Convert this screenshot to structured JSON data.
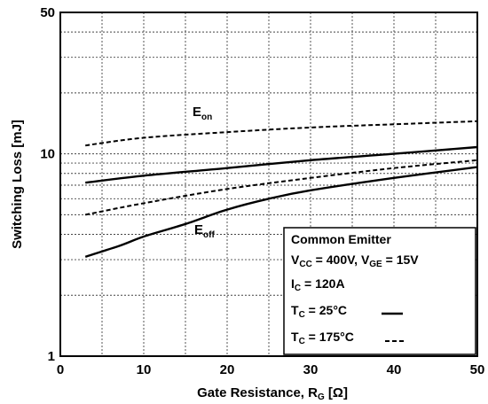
{
  "chart_data": {
    "type": "line",
    "xlabel": {
      "main": "Gate Resistance, R",
      "sub": "G",
      "unit": " [Ω]"
    },
    "ylabel": "Switching Loss [mJ]",
    "xlim": [
      0,
      50
    ],
    "ylim": [
      1,
      50
    ],
    "yscale": "log",
    "grid": true,
    "x_ticks": [
      "0",
      "10",
      "20",
      "30",
      "40",
      "50"
    ],
    "y_ticks": [
      "1",
      "10",
      "50"
    ],
    "annotations": {
      "eon": {
        "main": "E",
        "sub": "on"
      },
      "eoff": {
        "main": "E",
        "sub": "off"
      }
    },
    "legend_box": {
      "title": "Common Emitter",
      "conditions": "V_CC = 400V, V_GE = 15V",
      "vcc": {
        "main": "V",
        "sub": "CC",
        "rest": " = 400V, V"
      },
      "vge": {
        "sub": "GE",
        "rest": " = 15V"
      },
      "ic": {
        "main": "I",
        "sub": "C",
        "rest": " = 120A"
      },
      "tc25": {
        "main": "T",
        "sub": "C",
        "rest": " = 25°C"
      },
      "tc175": {
        "main": "T",
        "sub": "C",
        "rest": " = 175°C"
      }
    },
    "series": [
      {
        "curve": "Eon",
        "condition": "25°C",
        "style": "solid",
        "x": [
          3,
          10,
          20,
          30,
          40,
          50
        ],
        "y": [
          7.2,
          7.8,
          8.5,
          9.3,
          10.0,
          10.8
        ]
      },
      {
        "curve": "Eon",
        "condition": "175°C",
        "style": "dashed",
        "x": [
          3,
          10,
          20,
          30,
          40,
          50
        ],
        "y": [
          11.0,
          12.0,
          12.8,
          13.5,
          14.0,
          14.5
        ]
      },
      {
        "curve": "Eoff",
        "condition": "25°C",
        "style": "solid",
        "x": [
          3,
          7,
          10,
          15,
          20,
          25,
          30,
          40,
          50
        ],
        "y": [
          3.1,
          3.5,
          3.9,
          4.5,
          5.3,
          6.0,
          6.6,
          7.6,
          8.6
        ]
      },
      {
        "curve": "Eoff",
        "condition": "175°C",
        "style": "dashed",
        "x": [
          3,
          10,
          20,
          30,
          40,
          50
        ],
        "y": [
          5.0,
          5.7,
          6.7,
          7.6,
          8.5,
          9.3
        ]
      }
    ]
  }
}
